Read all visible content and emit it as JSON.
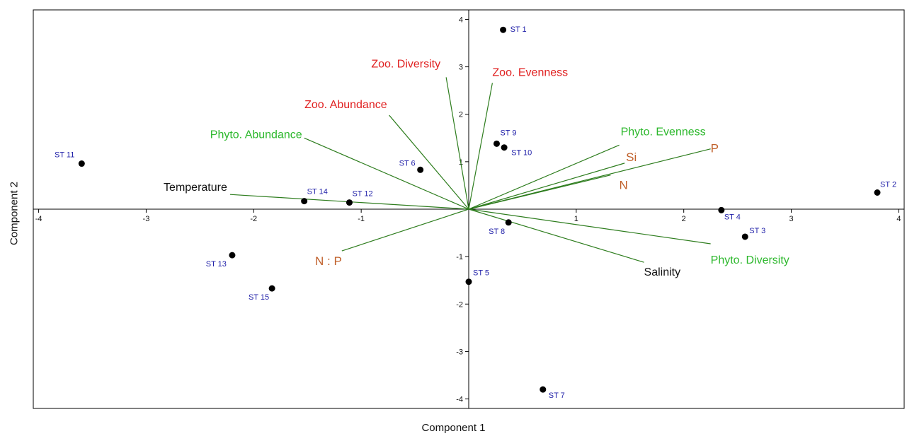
{
  "chart_data": {
    "type": "scatter",
    "title": "",
    "xlabel": "Component 1",
    "ylabel": "Component 2",
    "xlim": [
      -4.05,
      4.05
    ],
    "ylim": [
      -4.2,
      4.2
    ],
    "x_ticks": [
      -4,
      -3,
      -2,
      -1,
      1,
      2,
      3,
      4
    ],
    "y_ticks": [
      -4,
      -3,
      -2,
      -1,
      1,
      2,
      3,
      4
    ],
    "x_tick_labels": [
      "-4",
      "-3",
      "-2",
      "-1",
      "1",
      "2",
      "3",
      "4"
    ],
    "y_tick_labels": [
      "-4",
      "-3",
      "-2",
      "-1",
      "1",
      "2",
      "3",
      "4"
    ],
    "grid": false,
    "points": [
      {
        "label": "ST 1",
        "x": 0.32,
        "y": 3.78
      },
      {
        "label": "ST 2",
        "x": 3.8,
        "y": 0.35
      },
      {
        "label": "ST 3",
        "x": 2.57,
        "y": -0.58
      },
      {
        "label": "ST 4",
        "x": 2.35,
        "y": -0.02
      },
      {
        "label": "ST 5",
        "x": 0.0,
        "y": -1.53
      },
      {
        "label": "ST 6",
        "x": -0.45,
        "y": 0.83
      },
      {
        "label": "ST 7",
        "x": 0.69,
        "y": -3.8
      },
      {
        "label": "ST 8",
        "x": 0.37,
        "y": -0.28
      },
      {
        "label": "ST 9",
        "x": 0.26,
        "y": 1.38
      },
      {
        "label": "ST 10",
        "x": 0.33,
        "y": 1.3
      },
      {
        "label": "ST 11",
        "x": -3.6,
        "y": 0.96
      },
      {
        "label": "ST 12",
        "x": -1.11,
        "y": 0.14
      },
      {
        "label": "ST 13",
        "x": -2.2,
        "y": -0.97
      },
      {
        "label": "ST 14",
        "x": -1.53,
        "y": 0.17
      },
      {
        "label": "ST 15",
        "x": -1.83,
        "y": -1.67
      }
    ],
    "vectors": [
      {
        "label": "Zoo. Diversity",
        "x": -0.21,
        "y": 2.78,
        "group": "zooplankton"
      },
      {
        "label": "Zoo. Evenness",
        "x": 0.22,
        "y": 2.66,
        "group": "zooplankton"
      },
      {
        "label": "Zoo. Abundance",
        "x": -0.74,
        "y": 1.98,
        "group": "zooplankton"
      },
      {
        "label": "Phyto. Abundance",
        "x": -1.53,
        "y": 1.5,
        "group": "phytoplankton"
      },
      {
        "label": "Phyto. Evenness",
        "x": 1.4,
        "y": 1.35,
        "group": "phytoplankton"
      },
      {
        "label": "Phyto. Diversity",
        "x": 2.25,
        "y": -0.73,
        "group": "phytoplankton"
      },
      {
        "label": "Temperature",
        "x": -2.22,
        "y": 0.31,
        "group": "environment"
      },
      {
        "label": "Salinity",
        "x": 1.63,
        "y": -1.12,
        "group": "environment"
      },
      {
        "label": "P",
        "x": 2.25,
        "y": 1.27,
        "group": "nutrient"
      },
      {
        "label": "Si",
        "x": 1.45,
        "y": 0.97,
        "group": "nutrient"
      },
      {
        "label": "N",
        "x": 1.32,
        "y": 0.72,
        "group": "nutrient"
      },
      {
        "label": "N : P",
        "x": -1.18,
        "y": -0.88,
        "group": "nutrient"
      }
    ],
    "colors": {
      "point": "#000000",
      "point_label": "#1f1fa8",
      "vector_line": "#2e7d1e",
      "axis": "#000000",
      "zooplankton": "#e02020",
      "phytoplankton": "#2db82d",
      "environment": "#111111",
      "nutrient": "#c0602a"
    }
  }
}
